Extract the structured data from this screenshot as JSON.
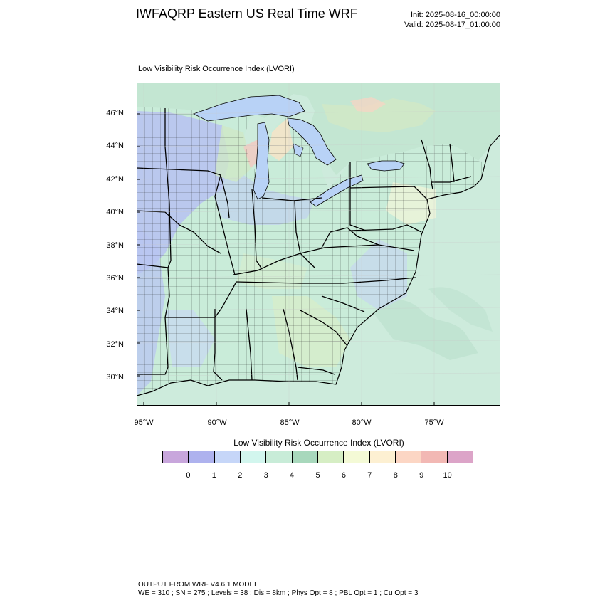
{
  "header": {
    "title": "IWFAQRP Eastern US Real Time WRF",
    "init": "Init: 2025-08-16_00:00:00",
    "valid": "Valid: 2025-08-17_01:00:00"
  },
  "map": {
    "subtitle": "Low Visibility Risk Occurrence Index   (LVORI)",
    "lat_labels": [
      "46°N",
      "44°N",
      "42°N",
      "40°N",
      "38°N",
      "36°N",
      "34°N",
      "32°N",
      "30°N"
    ],
    "lon_labels": [
      "95°W",
      "90°W",
      "85°W",
      "80°W",
      "75°W"
    ],
    "colors": {
      "ocean": "#cdebdc",
      "land": "#c9ecd9",
      "lakes": "#b8d2f6",
      "frame": "#000000"
    }
  },
  "colorbar": {
    "title": "Low Visibility Risk Occurrence Index  (LVORI)",
    "labels": [
      "0",
      "1",
      "2",
      "3",
      "4",
      "5",
      "6",
      "7",
      "8",
      "9",
      "10"
    ],
    "colors": [
      "#c8a6dc",
      "#aeb2ee",
      "#c6d6f8",
      "#d2f6ee",
      "#c8ecd8",
      "#a8d8bc",
      "#d6eec4",
      "#f4fad6",
      "#fdf0d2",
      "#fcd6c4",
      "#f2b8b4",
      "#dca4c8"
    ]
  },
  "footer": {
    "line1": "OUTPUT FROM WRF V4.6.1 MODEL",
    "line2": "WE = 310 ; SN = 275 ; Levels = 38 ; Dis = 8km ; Phys Opt = 8 ; PBL Opt = 1 ; Cu Opt = 3"
  }
}
